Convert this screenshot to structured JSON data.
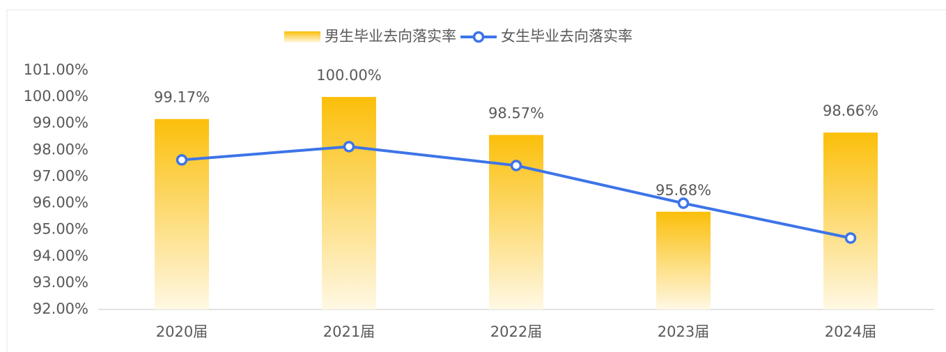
{
  "chart_data": {
    "type": "bar",
    "categories": [
      "2020届",
      "2021届",
      "2022届",
      "2023届",
      "2024届"
    ],
    "series": [
      {
        "name": "男生毕业去向落实率",
        "type": "bar",
        "color": "#fbbf0a",
        "values": [
          99.17,
          100,
          98.57,
          95.68,
          98.66
        ],
        "value_labels": [
          "99.17%",
          "100.00%",
          "98.57%",
          "95.68%",
          "98.66%"
        ]
      },
      {
        "name": "女生毕业去向落实率",
        "type": "line",
        "color": "#3d74e8",
        "values": [
          97.63,
          98.13,
          97.42,
          96.0,
          94.69
        ]
      }
    ],
    "ylim": [
      92,
      101
    ],
    "yticks": [
      {
        "value": 92,
        "label": "92.00%"
      },
      {
        "value": 93,
        "label": "93.00%"
      },
      {
        "value": 94,
        "label": "94.00%"
      },
      {
        "value": 95,
        "label": "95.00%"
      },
      {
        "value": 96,
        "label": "96.00%"
      },
      {
        "value": 97,
        "label": "97.00%"
      },
      {
        "value": 98,
        "label": "98.00%"
      },
      {
        "value": 99,
        "label": "99.00%"
      },
      {
        "value": 100,
        "label": "100.00%"
      },
      {
        "value": 101,
        "label": "101.00%"
      }
    ],
    "legend": "top"
  }
}
